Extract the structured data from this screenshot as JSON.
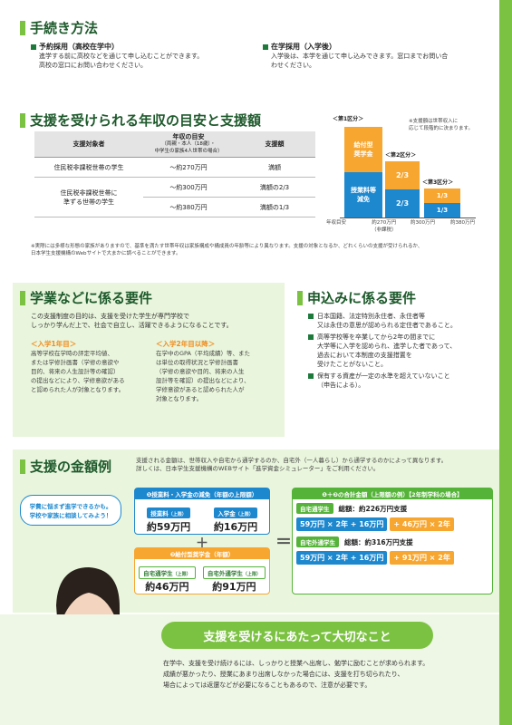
{
  "procedure": {
    "title": "手続き方法",
    "reservation": {
      "label": "予約採用（高校在学中）",
      "text": [
        "進学する前に高校などを通じて申し込むことができます。",
        "高校の窓口にお問い合わせください。"
      ]
    },
    "enrolled": {
      "label": "在学採用（入学後）",
      "text": [
        "入学後は、本学を通じて申し込みできます。窓口までお問い合",
        "わせください。"
      ]
    }
  },
  "income": {
    "title": "支援を受けられる年収の目安と支援額",
    "table": {
      "headers": [
        "支援対象者",
        "年収の目安",
        "（両親・本人（18歳）・",
        "中学生の家族4人世帯の場合）",
        "支援額"
      ],
      "rows": [
        {
          "target": "住民税非課税世帯の学生",
          "income": "～約270万円",
          "amount": "満額"
        },
        {
          "target": "住民税非課税世帯に",
          "target2": "準ずる世帯の学生",
          "income": "～約300万円",
          "amount": "満額の2/3"
        },
        {
          "target": "",
          "income": "～約380万円",
          "amount": "満額の1/3"
        }
      ]
    },
    "chart": {
      "tiers": [
        "＜第1区分＞",
        "＜第2区分＞",
        "＜第3区分＞"
      ],
      "note": [
        "※支援額は世帯収入に",
        "応じて段階的に決まります。"
      ],
      "labels": {
        "scholarship": "給付型",
        "scholarship2": "奨学金",
        "tuition": "授業料等",
        "tuition2": "減免",
        "two_thirds": "2/3",
        "one_third": "1/3"
      },
      "axis": [
        "年収目安",
        "約270万円",
        "（非課税）",
        "約300万円",
        "約380万円"
      ]
    },
    "note": [
      "※実際には多様な形態の家族がありますので、基準を満たす世帯年収は家族構成や構成員の年齢等により異なります。支援の対象となるか、どれくらいの支援が受けられるか、",
      "日本学生支援機構のWebサイトで大まかに調べることができます。"
    ]
  },
  "academic": {
    "title": "学業などに係る要件",
    "intro": [
      "この支援制度の目的は、支援を受けた学生が専門学校で",
      "しっかり学んだ上で、社会で自立し、活躍できるようになることです。"
    ],
    "first_year": {
      "label": "＜入学1年目＞",
      "text": [
        "高等学校在学時の評定平均値、",
        "または学修計画書（学修の意欲や",
        "目的、将来の人生設計等の確認）",
        "の提出などにより、学修意欲がある",
        "と認められた人が対象となります。"
      ]
    },
    "second_year": {
      "label": "＜入学2年目以降＞",
      "text": [
        "在学中のGPA（平均成績）等、また",
        "は単位の取得状況と学修計画書",
        "（学修の意欲や目的、将来の人生",
        "設計等を確認）の提出などにより、",
        "学修意欲があると認められた人が",
        "対象となります。"
      ]
    }
  },
  "application": {
    "title": "申込みに係る要件",
    "items": [
      [
        "日本国籍、法定特別永住者、永住者等",
        "又は永住の意思が認められる定住者であること。"
      ],
      [
        "高等学校等を卒業してから2年の間までに",
        "大学等に入学を認められ、進学した者であって、",
        "過去において本制度の支援措置を",
        "受けたことがないこと。"
      ],
      [
        "保有する資産が一定の水準を超えていないこと",
        "（申告による）。"
      ]
    ]
  },
  "amounts": {
    "title": "支援の金額例",
    "desc": [
      "支援される金額は、世帯収入や自宅から通学するのか、自宅外（一人暮らし）から通学するのかによって異なります。",
      "詳しくは、日本学生支援機構のWEBサイト「進学資金シミュレーター」をご利用ください。"
    ],
    "bubble": [
      "学費に悩まず進学できるかも。",
      "学校や家族に相談してみよう！"
    ],
    "box1": {
      "title": "❶授業料・入学金の減免（年額の上限額）",
      "tuition_label": "授業料",
      "tuition_tag": "（上限）",
      "tuition_amount": "約59万円",
      "entry_label": "入学金",
      "entry_tag": "（上限）",
      "entry_amount": "約16万円"
    },
    "box2": {
      "title": "❷給付型奨学金（年額）",
      "home_label": "自宅通学生",
      "home_tag": "（上限）",
      "home_amount": "約46万円",
      "away_label": "自宅外通学生",
      "away_tag": "（上限）",
      "away_amount": "約91万円"
    },
    "plus": "＋",
    "equals": "＝",
    "total": {
      "title": "❶＋❷の合計金額（上限額の例）【2年制学科の場合】",
      "home_label": "自宅通学生",
      "home_total": "総額：約226万円支援",
      "home_formula": "59万円 × 2年 + 16万円",
      "home_formula2": "+ 46万円 × 2年",
      "away_label": "自宅外通学生",
      "away_total": "総額：約316万円支援",
      "away_formula": "59万円 × 2年 + 16万円",
      "away_formula2": "+ 91万円 × 2年"
    }
  },
  "footer": {
    "title": "支援を受けるにあたって大切なこと",
    "text": [
      "在学中、支援を受け続けるには、しっかりと授業へ出席し、勉学に励むことが求められます。",
      "成績が悪かったり、授業にあまり出席しなかった場合には、支援を打ち切られたり、",
      "場合によっては返還などが必要になることもあるので、注意が必要です。"
    ]
  },
  "colors": {
    "green": "#7cc242",
    "dark_green": "#1e5a2c",
    "blue": "#1e88cf",
    "orange": "#f7a630"
  }
}
